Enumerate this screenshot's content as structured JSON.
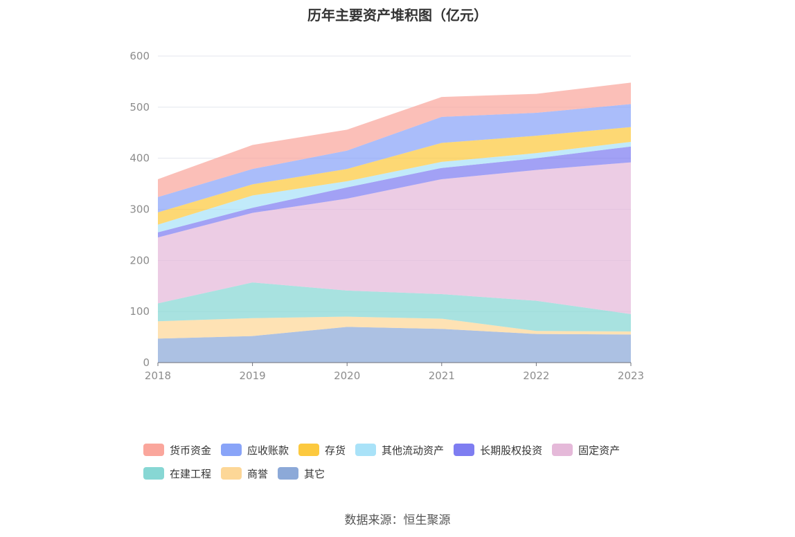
{
  "title": "历年主要资产堆积图（亿元）",
  "source": "数据来源：恒生聚源",
  "chart_data": {
    "type": "area",
    "stacked": true,
    "categories": [
      "2018",
      "2019",
      "2020",
      "2021",
      "2022",
      "2023"
    ],
    "ylim": [
      0,
      600
    ],
    "yticks": [
      "0",
      "100",
      "200",
      "300",
      "400",
      "500",
      "600"
    ],
    "grid": true,
    "legend_position": "bottom",
    "series": [
      {
        "name": "其它",
        "color": "#8ca9d8",
        "values": [
          47,
          52,
          70,
          66,
          56,
          55
        ]
      },
      {
        "name": "商誉",
        "color": "#fdd797",
        "values": [
          34,
          35,
          20,
          20,
          6,
          6
        ]
      },
      {
        "name": "在建工程",
        "color": "#87d7d4",
        "values": [
          35,
          70,
          51,
          48,
          59,
          34
        ]
      },
      {
        "name": "固定资产",
        "color": "#e5b9d9",
        "values": [
          129,
          136,
          180,
          225,
          256,
          297
        ]
      },
      {
        "name": "长期股权投资",
        "color": "#7e7df1",
        "values": [
          10,
          10,
          22,
          22,
          23,
          31
        ]
      },
      {
        "name": "其他流动资产",
        "color": "#a9e2f8",
        "values": [
          15,
          24,
          12,
          12,
          10,
          9
        ]
      },
      {
        "name": "存货",
        "color": "#fcc93f",
        "values": [
          24,
          22,
          24,
          37,
          34,
          29
        ]
      },
      {
        "name": "应收账款",
        "color": "#89a4f8",
        "values": [
          30,
          30,
          36,
          51,
          45,
          45
        ]
      },
      {
        "name": "货币资金",
        "color": "#faa69c",
        "values": [
          35,
          47,
          41,
          39,
          37,
          42
        ]
      }
    ],
    "legend_order": [
      "货币资金",
      "应收账款",
      "存货",
      "其他流动资产",
      "长期股权投资",
      "固定资产",
      "在建工程",
      "商誉",
      "其它"
    ]
  }
}
